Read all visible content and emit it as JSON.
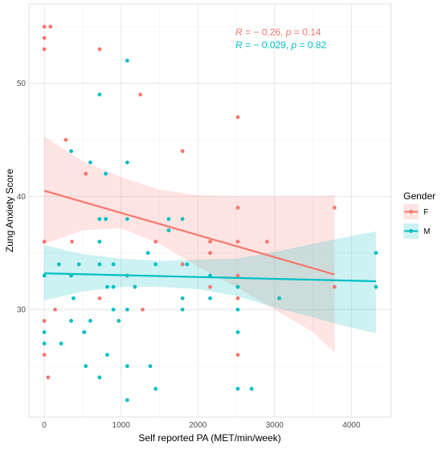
{
  "chart_data": {
    "type": "scatter",
    "xlabel": "Self reported PA (MET/min/week)",
    "ylabel": "Zung Anxiety Score",
    "xlim": [
      -200,
      4520
    ],
    "ylim": [
      20.5,
      57
    ],
    "x_ticks": [
      0,
      1000,
      2000,
      3000,
      4000
    ],
    "y_ticks": [
      30,
      40,
      50
    ],
    "grid": true,
    "legend": {
      "title": "Gender",
      "placement": "right",
      "entries": [
        "F",
        "M"
      ]
    },
    "annotations": [
      {
        "series": "F",
        "text_r": "R",
        "text_rest": " = − 0.26, ",
        "text_p": "p",
        "text_val": " = 0.14"
      },
      {
        "series": "M",
        "text_r": "R",
        "text_rest": " = − 0.029, ",
        "text_p": "p",
        "text_val": " = 0.82"
      }
    ],
    "series": [
      {
        "name": "F",
        "color": "#F8766D",
        "band_color": "#F8766D",
        "points": [
          [
            0,
            55
          ],
          [
            0,
            54
          ],
          [
            0,
            53
          ],
          [
            0,
            36
          ],
          [
            0,
            29
          ],
          [
            0,
            26
          ],
          [
            50,
            24
          ],
          [
            80,
            55
          ],
          [
            140,
            30
          ],
          [
            280,
            45
          ],
          [
            360,
            36
          ],
          [
            540,
            42
          ],
          [
            720,
            53
          ],
          [
            720,
            31
          ],
          [
            1250,
            49
          ],
          [
            1280,
            30
          ],
          [
            1450,
            36
          ],
          [
            1800,
            44
          ],
          [
            1800,
            34
          ],
          [
            2160,
            36
          ],
          [
            2160,
            35
          ],
          [
            2160,
            32
          ],
          [
            2520,
            47
          ],
          [
            2520,
            39
          ],
          [
            2520,
            36
          ],
          [
            2520,
            33
          ],
          [
            2520,
            31
          ],
          [
            2520,
            26
          ],
          [
            2900,
            36
          ],
          [
            3780,
            39
          ],
          [
            3780,
            32
          ]
        ],
        "fit": {
          "x": [
            0,
            3780
          ],
          "y": [
            40.5,
            33.1
          ]
        },
        "band": {
          "x": [
            0,
            500,
            1000,
            1500,
            2000,
            2500,
            3000,
            3500,
            3780
          ],
          "lower": [
            35.8,
            37.0,
            37.2,
            35.8,
            33.8,
            32.0,
            30.0,
            28.0,
            26.2
          ],
          "upper": [
            45.3,
            43.1,
            41.7,
            40.6,
            40.1,
            40.0,
            40.0,
            40.0,
            40.1
          ]
        }
      },
      {
        "name": "M",
        "color": "#00BFC4",
        "band_color": "#00BFC4",
        "points": [
          [
            0,
            33
          ],
          [
            0,
            28
          ],
          [
            0,
            27
          ],
          [
            190,
            34
          ],
          [
            220,
            27
          ],
          [
            350,
            33
          ],
          [
            350,
            29
          ],
          [
            350,
            44
          ],
          [
            380,
            31
          ],
          [
            450,
            34
          ],
          [
            520,
            28
          ],
          [
            540,
            25
          ],
          [
            600,
            43
          ],
          [
            600,
            29
          ],
          [
            720,
            49
          ],
          [
            720,
            38
          ],
          [
            720,
            36
          ],
          [
            720,
            34
          ],
          [
            720,
            24
          ],
          [
            800,
            42
          ],
          [
            800,
            38
          ],
          [
            820,
            32
          ],
          [
            820,
            26
          ],
          [
            900,
            34
          ],
          [
            900,
            32
          ],
          [
            900,
            30
          ],
          [
            970,
            29
          ],
          [
            1080,
            52
          ],
          [
            1080,
            43
          ],
          [
            1080,
            38
          ],
          [
            1080,
            33
          ],
          [
            1080,
            30
          ],
          [
            1080,
            25
          ],
          [
            1080,
            22
          ],
          [
            1180,
            32
          ],
          [
            1350,
            35
          ],
          [
            1380,
            25
          ],
          [
            1450,
            34
          ],
          [
            1450,
            23
          ],
          [
            1620,
            38
          ],
          [
            1620,
            37
          ],
          [
            1800,
            38
          ],
          [
            1800,
            31
          ],
          [
            1800,
            30
          ],
          [
            1860,
            34
          ],
          [
            2160,
            33
          ],
          [
            2160,
            31
          ],
          [
            2520,
            32
          ],
          [
            2520,
            30
          ],
          [
            2520,
            28
          ],
          [
            2520,
            23
          ],
          [
            2700,
            23
          ],
          [
            3060,
            31
          ],
          [
            4320,
            35
          ],
          [
            4320,
            32
          ]
        ],
        "fit": {
          "x": [
            0,
            4320
          ],
          "y": [
            33.2,
            32.5
          ]
        },
        "band": {
          "x": [
            0,
            500,
            1000,
            1500,
            2000,
            2500,
            3000,
            3500,
            4000,
            4320
          ],
          "lower": [
            30.8,
            31.6,
            32.0,
            32.0,
            31.8,
            31.2,
            30.2,
            29.3,
            28.4,
            27.9
          ],
          "upper": [
            35.7,
            34.9,
            34.5,
            34.3,
            34.4,
            34.5,
            35.1,
            35.8,
            36.5,
            36.9
          ]
        }
      }
    ]
  }
}
